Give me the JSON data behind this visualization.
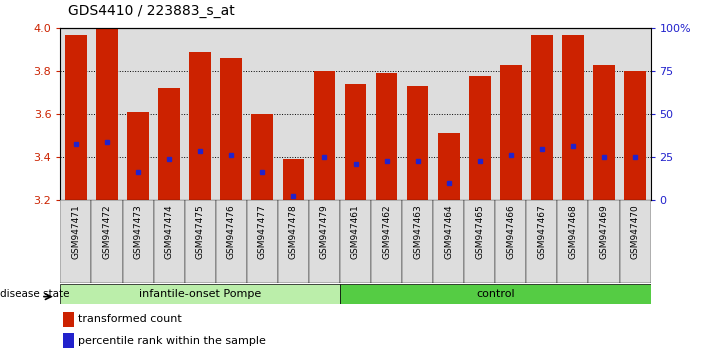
{
  "title": "GDS4410 / 223883_s_at",
  "samples": [
    "GSM947471",
    "GSM947472",
    "GSM947473",
    "GSM947474",
    "GSM947475",
    "GSM947476",
    "GSM947477",
    "GSM947478",
    "GSM947479",
    "GSM947461",
    "GSM947462",
    "GSM947463",
    "GSM947464",
    "GSM947465",
    "GSM947466",
    "GSM947467",
    "GSM947468",
    "GSM947469",
    "GSM947470"
  ],
  "bar_values": [
    3.97,
    4.0,
    3.61,
    3.72,
    3.89,
    3.86,
    3.6,
    3.39,
    3.8,
    3.74,
    3.79,
    3.73,
    3.51,
    3.78,
    3.83,
    3.97,
    3.97,
    3.83,
    3.8
  ],
  "dot_values": [
    3.46,
    3.47,
    3.33,
    3.39,
    3.43,
    3.41,
    3.33,
    3.22,
    3.4,
    3.37,
    3.38,
    3.38,
    3.28,
    3.38,
    3.41,
    3.44,
    3.45,
    3.4,
    3.4
  ],
  "group1_label": "infantile-onset Pompe",
  "group2_label": "control",
  "group1_count": 9,
  "group2_count": 10,
  "bar_color": "#CC2200",
  "dot_color": "#2222CC",
  "ymin": 3.2,
  "ymax": 4.0,
  "yticks": [
    3.2,
    3.4,
    3.6,
    3.8,
    4.0
  ],
  "right_yticks": [
    0,
    25,
    50,
    75,
    100
  ],
  "right_ytick_labels": [
    "0",
    "25",
    "50",
    "75",
    "100%"
  ],
  "group1_bg": "#BBEEAA",
  "group2_bg": "#55CC44",
  "sample_bg": "#DDDDDD",
  "legend_red_label": "transformed count",
  "legend_blue_label": "percentile rank within the sample",
  "disease_state_label": "disease state"
}
